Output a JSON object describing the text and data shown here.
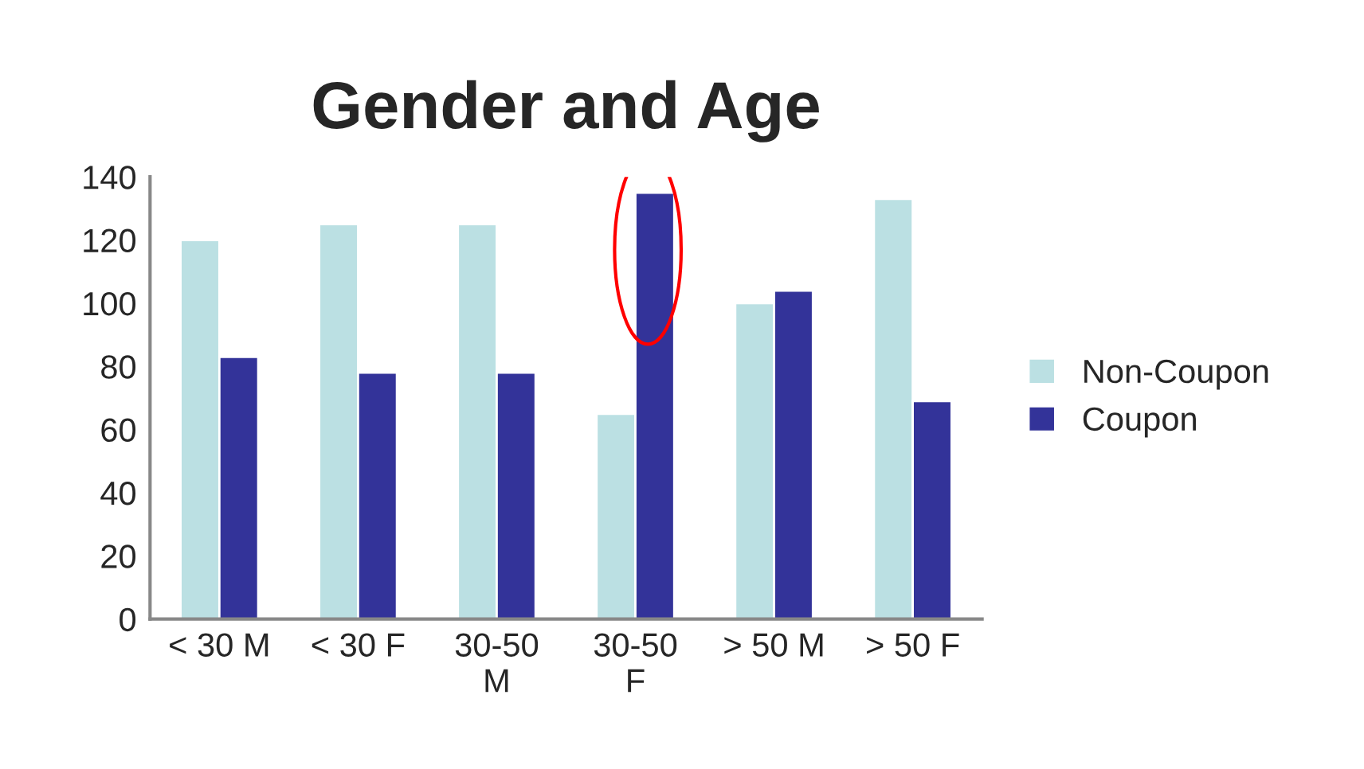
{
  "chart_data": {
    "type": "bar",
    "title": "Gender and Age",
    "categories": [
      "< 30 M",
      "< 30 F",
      "30-50\nM",
      "30-50\nF",
      "> 50 M",
      "> 50 F"
    ],
    "series": [
      {
        "name": "Non-Coupon",
        "color": "#bbe0e3",
        "values": [
          120,
          125,
          125,
          65,
          100,
          133
        ]
      },
      {
        "name": "Coupon",
        "color": "#333399",
        "values": [
          83,
          78,
          78,
          135,
          104,
          69
        ]
      }
    ],
    "ylim": [
      0,
      140
    ],
    "yticks": [
      0,
      20,
      40,
      60,
      80,
      100,
      120,
      140
    ],
    "grid": false,
    "legend": "right"
  }
}
